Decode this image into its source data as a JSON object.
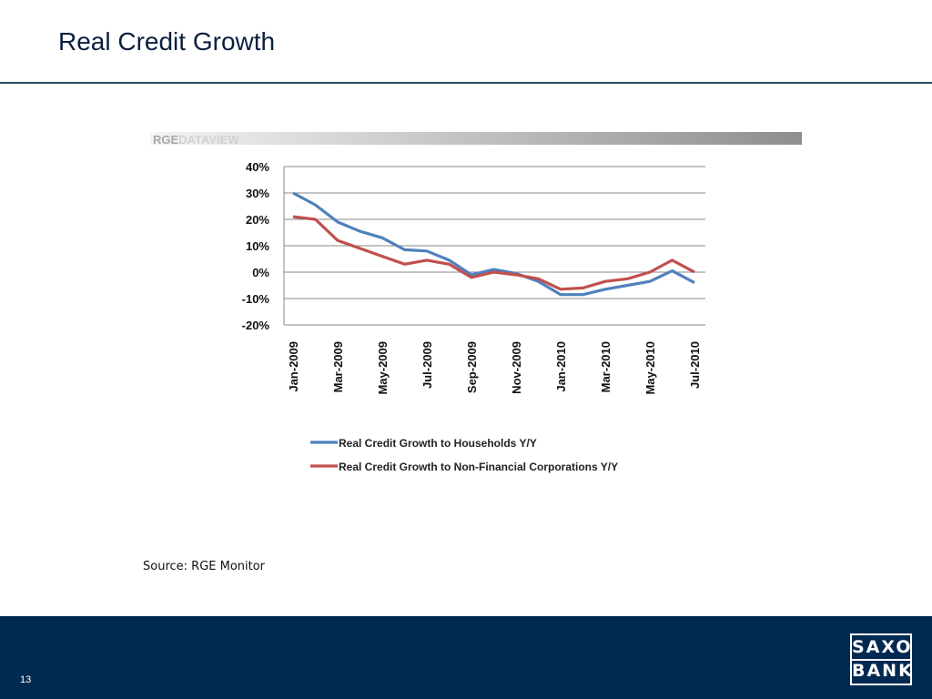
{
  "slide": {
    "title": "Real Credit Growth",
    "source": "Source: RGE Monitor",
    "page_number": "13"
  },
  "brand": {
    "watermark_left": "RGE",
    "watermark_right": "DATAVIEW",
    "logo_top": "SAXO",
    "logo_bottom": "BANK"
  },
  "colors": {
    "footer": "#012a52",
    "households": "#4f81bd",
    "corporations": "#c0504d"
  },
  "chart_data": {
    "type": "line",
    "title": "",
    "xlabel": "",
    "ylabel": "",
    "ylim": [
      -20,
      40
    ],
    "yticks": [
      40,
      30,
      20,
      10,
      0,
      -10,
      -20
    ],
    "ytick_labels": [
      "40%",
      "30%",
      "20%",
      "10%",
      "0%",
      "-10%",
      "-20%"
    ],
    "x_tick_labels": [
      "Jan-2009",
      "Mar-2009",
      "May-2009",
      "Jul-2009",
      "Sep-2009",
      "Nov-2009",
      "Jan-2010",
      "Mar-2010",
      "May-2010",
      "Jul-2010"
    ],
    "x": [
      "Jan-2009",
      "Feb-2009",
      "Mar-2009",
      "Apr-2009",
      "May-2009",
      "Jun-2009",
      "Jul-2009",
      "Aug-2009",
      "Sep-2009",
      "Oct-2009",
      "Nov-2009",
      "Dec-2009",
      "Jan-2010",
      "Feb-2010",
      "Mar-2010",
      "Apr-2010",
      "May-2010",
      "Jun-2010",
      "Jul-2010"
    ],
    "grid": true,
    "legend_position": "bottom",
    "series": [
      {
        "name": "Real Credit Growth to Households Y/Y",
        "color": "#4f81bd",
        "values": [
          30,
          25.5,
          19,
          15.5,
          13,
          8.5,
          8,
          4.5,
          -1,
          1,
          -0.5,
          -3.5,
          -8.5,
          -8.5,
          -6.5,
          -5,
          -3.5,
          0.5,
          -4
        ]
      },
      {
        "name": "Real Credit Growth to Non-Financial Corporations Y/Y",
        "color": "#c0504d",
        "values": [
          21,
          20,
          12,
          9,
          6,
          3,
          4.5,
          3,
          -2,
          0,
          -1,
          -2.5,
          -6.5,
          -6,
          -3.5,
          -2.5,
          0,
          4.5,
          0
        ]
      }
    ]
  }
}
